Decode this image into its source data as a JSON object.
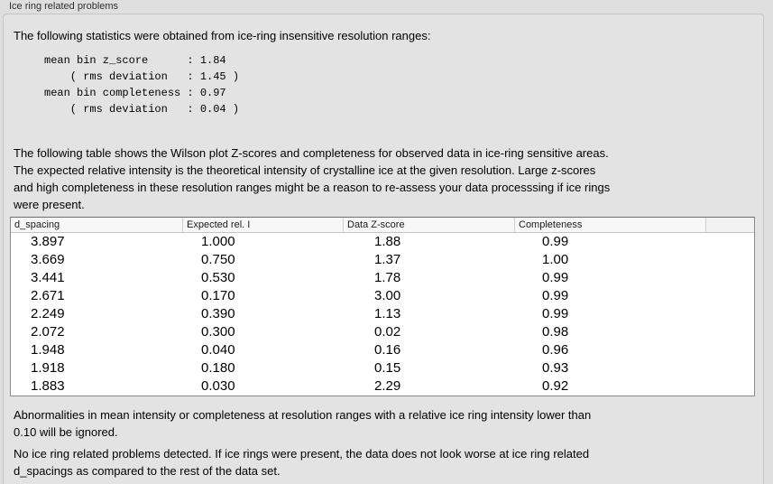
{
  "panel": {
    "title": "Ice ring related problems"
  },
  "intro": "The following statistics were obtained from ice-ring insensitive resolution ranges:",
  "stats": {
    "lines": [
      "mean bin z_score      : 1.84",
      "    ( rms deviation   : 1.45 )",
      "mean bin completeness : 0.97",
      "    ( rms deviation   : 0.04 )"
    ]
  },
  "description_lines": [
    "The following table shows the Wilson plot Z-scores and completeness for observed data in ice-ring sensitive areas.",
    "The expected relative intensity is the theoretical intensity of crystalline ice at the given resolution. Large z-scores",
    "and high completeness in these resolution ranges might be a reason to re-assess your data processsing if ice rings",
    "were present."
  ],
  "table": {
    "columns": [
      "d_spacing",
      "Expected rel. I",
      "Data Z-score",
      "Completeness"
    ],
    "rows": [
      [
        "3.897",
        "1.000",
        "1.88",
        "0.99"
      ],
      [
        "3.669",
        "0.750",
        "1.37",
        "1.00"
      ],
      [
        "3.441",
        "0.530",
        "1.78",
        "0.99"
      ],
      [
        "2.671",
        "0.170",
        "3.00",
        "0.99"
      ],
      [
        "2.249",
        "0.390",
        "1.13",
        "0.99"
      ],
      [
        "2.072",
        "0.300",
        "0.02",
        "0.98"
      ],
      [
        "1.948",
        "0.040",
        "0.16",
        "0.96"
      ],
      [
        "1.918",
        "0.180",
        "0.15",
        "0.93"
      ],
      [
        "1.883",
        "0.030",
        "2.29",
        "0.92"
      ]
    ]
  },
  "note_lines": [
    "Abnormalities in mean intensity or completeness at resolution ranges with a relative ice ring intensity lower than",
    "0.10 will be ignored."
  ],
  "conclusion_lines": [
    "No ice ring related problems detected. If ice rings were present, the data does not look worse at ice ring related",
    "d_spacings as compared to the rest of the data set."
  ],
  "colors": {
    "window_background": "#dfdfdf",
    "groupbox_background": "#e3e3e3",
    "groupbox_border": "#c5c5c5",
    "table_background": "#ffffff",
    "table_border": "#8a8a8a",
    "header_background": "#f7f7f7",
    "text": "#000000"
  }
}
